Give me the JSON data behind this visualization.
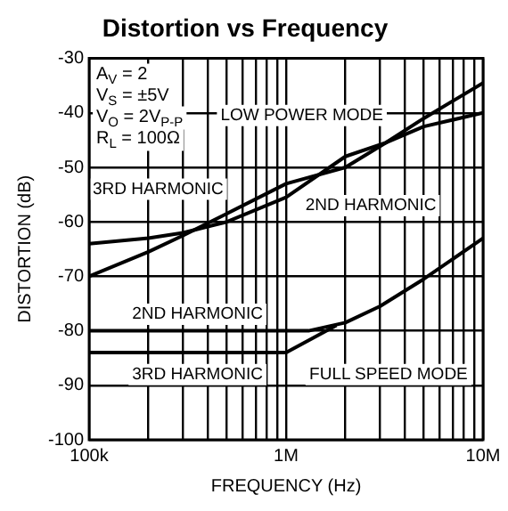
{
  "chart_data": {
    "type": "line",
    "title": "Distortion vs Frequency",
    "xlabel": "FREQUENCY (Hz)",
    "ylabel": "DISTORTION (dB)",
    "log": "x",
    "grid": true,
    "marker": "none",
    "line_style": "solid",
    "xlim": [
      100000,
      10000000
    ],
    "ylim": [
      -100,
      -30
    ],
    "xticks": [
      {
        "value": 100000,
        "label": "100k"
      },
      {
        "value": 200000,
        "label": null
      },
      {
        "value": 300000,
        "label": null
      },
      {
        "value": 400000,
        "label": null
      },
      {
        "value": 500000,
        "label": null
      },
      {
        "value": 600000,
        "label": null
      },
      {
        "value": 700000,
        "label": null
      },
      {
        "value": 800000,
        "label": null
      },
      {
        "value": 900000,
        "label": null
      },
      {
        "value": 1000000,
        "label": "1M"
      },
      {
        "value": 2000000,
        "label": null
      },
      {
        "value": 3000000,
        "label": null
      },
      {
        "value": 4000000,
        "label": null
      },
      {
        "value": 5000000,
        "label": null
      },
      {
        "value": 6000000,
        "label": null
      },
      {
        "value": 7000000,
        "label": null
      },
      {
        "value": 8000000,
        "label": null
      },
      {
        "value": 9000000,
        "label": null
      },
      {
        "value": 10000000,
        "label": "10M"
      }
    ],
    "yticks": [
      -100,
      -90,
      -80,
      -70,
      -60,
      -50,
      -40,
      -30
    ],
    "series": [
      {
        "color": "#000000",
        "x": [
          100000,
          200000,
          300000,
          500000,
          1000000,
          2000000,
          3200000,
          5000000,
          10000000
        ],
        "values": [
          -64,
          -63,
          -62,
          -60,
          -55.5,
          -48,
          -45.5,
          -42.5,
          -40
        ]
      },
      {
        "color": "#000000",
        "x": [
          100000,
          200000,
          300000,
          500000,
          1000000,
          2000000,
          3200000,
          5000000,
          10000000
        ],
        "values": [
          -70,
          -65.5,
          -62.5,
          -58.5,
          -53,
          -50,
          -45.5,
          -41,
          -34.5
        ]
      },
      {
        "color": "#000000",
        "x": [
          100000,
          1000000,
          1300000,
          2000000,
          3000000,
          5000000,
          10000000
        ],
        "values": [
          -80,
          -80,
          -80,
          -78.5,
          -75.5,
          -70.5,
          -63
        ]
      },
      {
        "color": "#000000",
        "x": [
          100000,
          1000000,
          1800000
        ],
        "values": [
          -84,
          -84,
          -79
        ]
      }
    ],
    "annotations": [
      "A$_{V}$ = 2",
      "V$_{S}$ = ±5V",
      "V$_{O}$ = 2V$_{P-P}$",
      "R$_{L}$ = 100Ω",
      "LOW POWER MODE",
      "3RD HARMONIC",
      "2ND HARMONIC",
      "2ND HARMONIC",
      "3RD HARMONIC",
      "FULL SPEED MODE"
    ]
  }
}
